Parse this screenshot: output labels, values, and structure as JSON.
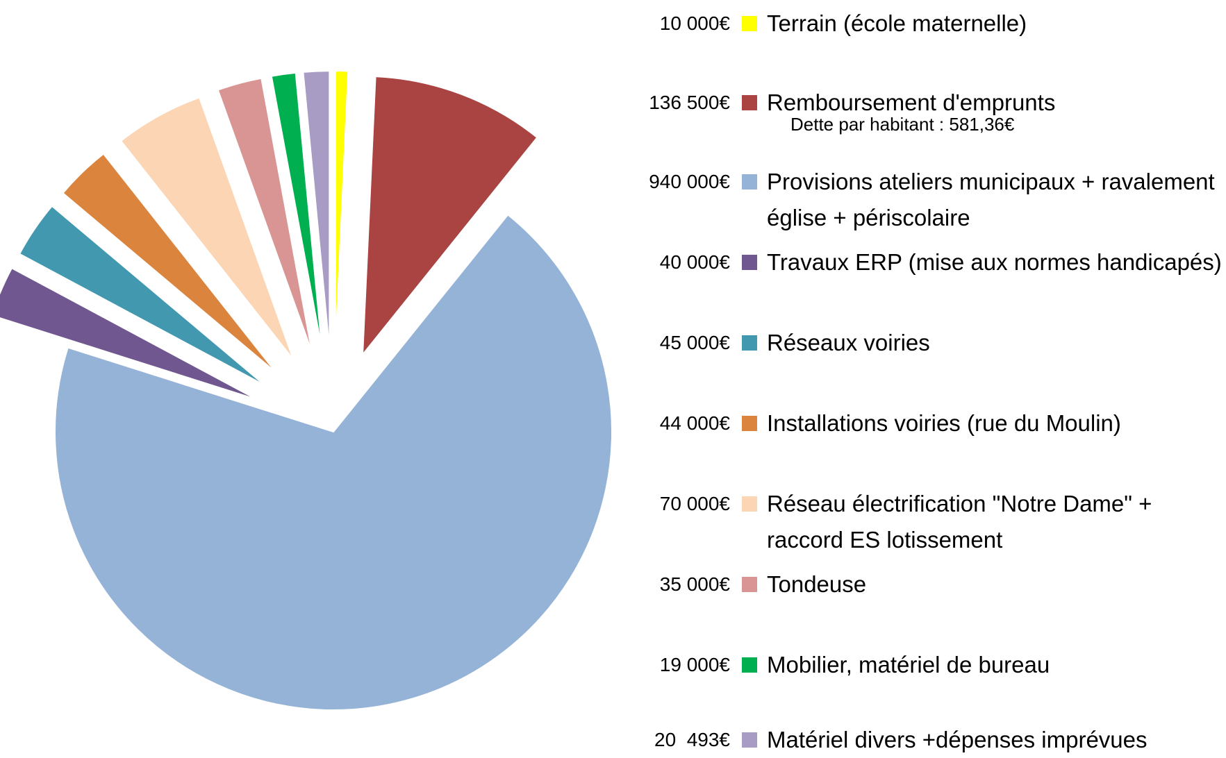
{
  "chart_data": {
    "type": "pie",
    "categories": [
      "Terrain (école maternelle)",
      "Remboursement d'emprunts",
      "Provisions ateliers municipaux + ravalement église + périscolaire",
      "Travaux ERP (mise aux normes handicapés)",
      "Réseaux voiries",
      "Installations voiries (rue du Moulin)",
      "Réseau électrification \"Notre Dame\" + raccord ES lotissement",
      "Tondeuse",
      "Mobilier, matériel de bureau",
      "Matériel divers +dépenses imprévues"
    ],
    "values": [
      10000,
      136500,
      940000,
      40000,
      45000,
      44000,
      70000,
      35000,
      19000,
      20493
    ],
    "value_labels": [
      "10 000€",
      "136 500€",
      "940 000€",
      "40 000€",
      "45 000€",
      "44 000€",
      "70 000€",
      "35 000€",
      "19 000€",
      "20  493€"
    ],
    "colors": [
      "#ffff00",
      "#a94442",
      "#95b3d7",
      "#71578f",
      "#4198af",
      "#db843d",
      "#fcd5b5",
      "#d99594",
      "#00b050",
      "#a89bc4"
    ],
    "annotation": "Dette par habitant : 581,36€",
    "legend": "right"
  }
}
